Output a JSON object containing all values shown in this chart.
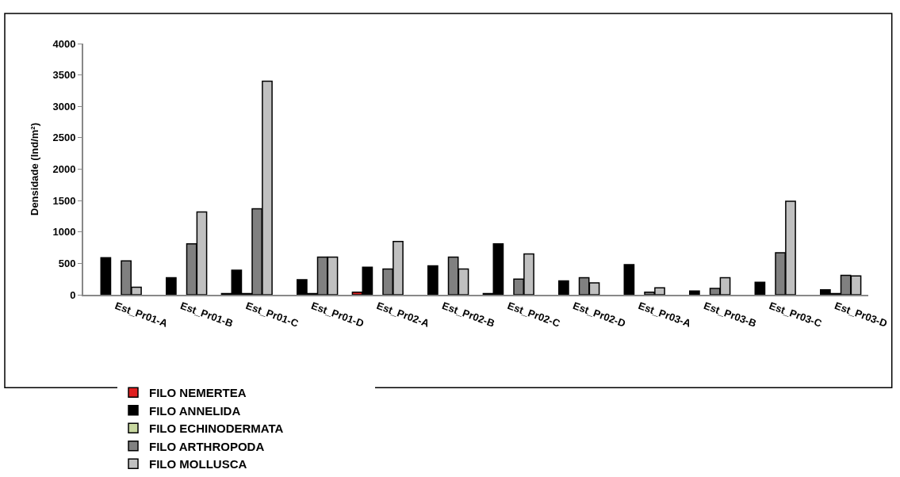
{
  "chart_data": {
    "type": "bar",
    "ylabel": "Densidade (Ind/m²)",
    "categories": [
      "Est_Pr01-A",
      "Est_Pr01-B",
      "Est_Pr01-C",
      "Est_Pr01-D",
      "Est_Pr02-A",
      "Est_Pr02-B",
      "Est_Pr02-C",
      "Est_Pr02-D",
      "Est_Pr03-A",
      "Est_Pr03-B",
      "Est_Pr03-C",
      "Est_Pr03-D"
    ],
    "series": [
      {
        "name": "FILO NEMERTEA",
        "color": "#e02020",
        "values": [
          null,
          null,
          20,
          null,
          40,
          null,
          20,
          null,
          null,
          null,
          null,
          null
        ]
      },
      {
        "name": "FILO ANNELIDA",
        "color": "#000000",
        "values": [
          590,
          270,
          390,
          240,
          440,
          460,
          810,
          220,
          480,
          60,
          200,
          80
        ]
      },
      {
        "name": "FILO ECHINODERMATA",
        "color": "#c8d8a0",
        "values": [
          null,
          null,
          20,
          20,
          null,
          null,
          null,
          null,
          null,
          null,
          null,
          20
        ]
      },
      {
        "name": "FILO ARTHROPODA",
        "color": "#808080",
        "values": [
          540,
          810,
          1370,
          600,
          410,
          600,
          250,
          270,
          40,
          100,
          670,
          310
        ]
      },
      {
        "name": "FILO MOLLUSCA",
        "color": "#c0c0c0",
        "values": [
          120,
          1320,
          3400,
          600,
          850,
          410,
          650,
          190,
          110,
          270,
          1490,
          300
        ]
      }
    ],
    "ylim": [
      0,
      4000
    ],
    "yticks": [
      0,
      500,
      1000,
      1500,
      2000,
      2500,
      3000,
      3500,
      4000
    ],
    "legend": "bottom"
  }
}
